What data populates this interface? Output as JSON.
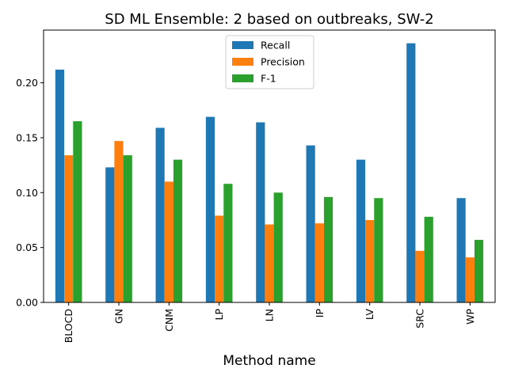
{
  "chart_data": {
    "type": "bar",
    "title": "SD ML Ensemble: 2 based on outbreaks, SW-2",
    "xlabel": "Method name",
    "ylabel": "",
    "categories": [
      "BLOCD",
      "GN",
      "CNM",
      "LP",
      "LN",
      "IP",
      "LV",
      "SRC",
      "WP"
    ],
    "series": [
      {
        "name": "Recall",
        "color": "#1f77b4",
        "values": [
          0.212,
          0.123,
          0.159,
          0.169,
          0.164,
          0.143,
          0.13,
          0.236,
          0.095
        ]
      },
      {
        "name": "Precision",
        "color": "#ff7f0e",
        "values": [
          0.134,
          0.147,
          0.11,
          0.079,
          0.071,
          0.072,
          0.075,
          0.047,
          0.041
        ]
      },
      {
        "name": "F-1",
        "color": "#2ca02c",
        "values": [
          0.165,
          0.134,
          0.13,
          0.108,
          0.1,
          0.096,
          0.095,
          0.078,
          0.057
        ]
      }
    ],
    "ylim": [
      0,
      0.248
    ],
    "yticks": [
      0.0,
      0.05,
      0.1,
      0.15,
      0.2
    ],
    "ytick_labels": [
      "0.00",
      "0.05",
      "0.10",
      "0.15",
      "0.20"
    ],
    "grid": false,
    "legend_position": "top-center"
  }
}
